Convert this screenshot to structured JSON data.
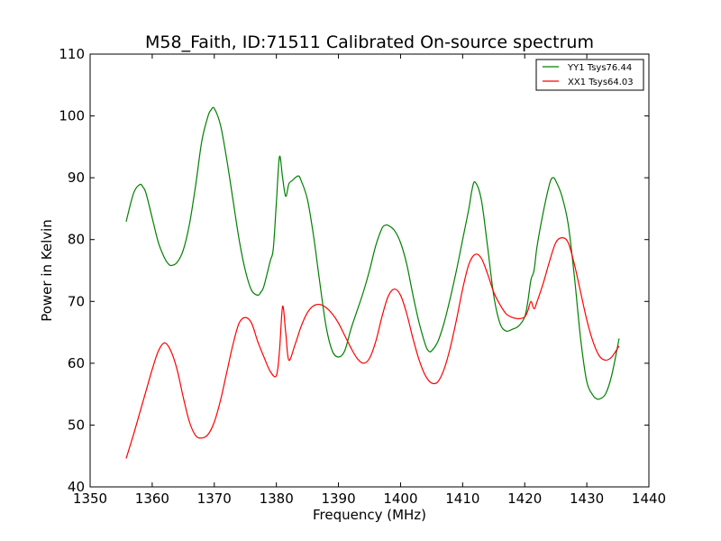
{
  "chart_data": {
    "type": "line",
    "title": "M58_Faith, ID:71511 Calibrated On-source spectrum",
    "xlabel": "Frequency (MHz)",
    "ylabel": "Power in Kelvin",
    "xlim": [
      1350,
      1440
    ],
    "ylim": [
      40,
      110
    ],
    "xticks": [
      1350,
      1360,
      1370,
      1380,
      1390,
      1400,
      1410,
      1420,
      1430,
      1440
    ],
    "yticks": [
      40,
      50,
      60,
      70,
      80,
      90,
      100,
      110
    ],
    "grid": false,
    "legend_position": "top-right",
    "series": [
      {
        "name": "YY1 Tsys76.44",
        "color": "#008000",
        "x": [
          1355.8,
          1357.0,
          1358.0,
          1358.5,
          1359.0,
          1360.0,
          1361.0,
          1362.0,
          1362.5,
          1363.0,
          1364.0,
          1365.0,
          1366.0,
          1367.0,
          1368.0,
          1369.0,
          1369.5,
          1370.0,
          1371.0,
          1372.0,
          1373.0,
          1374.0,
          1375.0,
          1376.0,
          1377.0,
          1377.5,
          1378.0,
          1379.0,
          1379.5,
          1380.0,
          1380.5,
          1381.0,
          1381.5,
          1382.0,
          1382.5,
          1383.5,
          1384.0,
          1385.0,
          1386.0,
          1387.0,
          1388.0,
          1389.0,
          1390.0,
          1391.0,
          1392.0,
          1393.0,
          1394.0,
          1395.0,
          1396.0,
          1397.0,
          1397.5,
          1398.0,
          1399.0,
          1400.0,
          1401.0,
          1402.0,
          1403.0,
          1404.0,
          1404.5,
          1405.0,
          1406.0,
          1407.0,
          1408.0,
          1409.0,
          1410.0,
          1411.0,
          1411.5,
          1412.0,
          1413.0,
          1414.0,
          1415.0,
          1416.0,
          1417.0,
          1418.0,
          1419.0,
          1420.0,
          1420.5,
          1421.0,
          1421.5,
          1422.0,
          1423.0,
          1424.0,
          1424.5,
          1425.0,
          1426.0,
          1427.0,
          1428.0,
          1429.0,
          1430.0,
          1431.0,
          1431.5,
          1432.0,
          1433.0,
          1434.0,
          1435.2
        ],
        "values": [
          82.9,
          87.5,
          88.9,
          88.5,
          87.5,
          83.5,
          79.5,
          77.0,
          76.2,
          75.8,
          76.3,
          78.3,
          82.5,
          88.8,
          96.0,
          100.0,
          101.0,
          101.2,
          98.5,
          93.0,
          86.5,
          80.0,
          75.0,
          71.8,
          71.0,
          71.5,
          72.5,
          76.5,
          78.5,
          86.0,
          93.4,
          90.0,
          87.0,
          89.0,
          89.5,
          90.3,
          89.5,
          86.5,
          80.5,
          73.0,
          66.0,
          62.0,
          61.0,
          62.0,
          65.5,
          68.5,
          71.5,
          75.0,
          79.0,
          81.8,
          82.3,
          82.3,
          81.5,
          79.5,
          76.0,
          71.0,
          66.5,
          63.0,
          62.0,
          62.0,
          63.5,
          66.5,
          70.5,
          75.0,
          80.0,
          85.0,
          88.0,
          89.3,
          86.5,
          79.0,
          71.0,
          66.5,
          65.2,
          65.5,
          66.0,
          67.5,
          70.0,
          73.5,
          75.0,
          79.0,
          84.5,
          89.0,
          90.0,
          89.5,
          87.0,
          82.5,
          74.0,
          64.0,
          57.0,
          54.8,
          54.3,
          54.2,
          55.0,
          58.0,
          64.0
        ]
      },
      {
        "name": "XX1 Tsys64.03",
        "color": "#ff0000",
        "x": [
          1355.8,
          1357.0,
          1358.0,
          1359.0,
          1360.0,
          1361.0,
          1362.0,
          1363.0,
          1364.0,
          1365.0,
          1366.0,
          1367.0,
          1368.0,
          1369.0,
          1370.0,
          1371.0,
          1372.0,
          1373.0,
          1374.0,
          1375.0,
          1376.0,
          1377.0,
          1378.0,
          1379.0,
          1380.0,
          1380.5,
          1381.0,
          1381.5,
          1382.0,
          1383.0,
          1384.0,
          1385.0,
          1386.0,
          1387.0,
          1388.0,
          1389.0,
          1390.0,
          1391.0,
          1392.0,
          1393.0,
          1394.0,
          1395.0,
          1396.0,
          1397.0,
          1398.0,
          1399.0,
          1400.0,
          1401.0,
          1402.0,
          1403.0,
          1404.0,
          1405.0,
          1406.0,
          1407.0,
          1408.0,
          1409.0,
          1410.0,
          1411.0,
          1412.0,
          1413.0,
          1414.0,
          1415.0,
          1416.0,
          1417.0,
          1418.0,
          1419.0,
          1420.0,
          1420.5,
          1421.0,
          1421.5,
          1422.0,
          1423.0,
          1424.0,
          1425.0,
          1426.0,
          1427.0,
          1428.0,
          1429.0,
          1430.0,
          1431.0,
          1432.0,
          1433.0,
          1434.0,
          1435.2
        ],
        "values": [
          44.6,
          48.5,
          52.0,
          55.5,
          59.0,
          62.0,
          63.3,
          62.0,
          59.0,
          54.5,
          50.5,
          48.3,
          47.9,
          48.5,
          50.5,
          54.0,
          58.5,
          63.0,
          66.5,
          67.4,
          66.5,
          63.5,
          61.0,
          58.7,
          58.0,
          62.0,
          69.2,
          65.0,
          60.5,
          63.0,
          66.0,
          68.2,
          69.3,
          69.5,
          69.0,
          68.0,
          66.5,
          64.5,
          62.5,
          60.8,
          60.0,
          60.8,
          63.5,
          67.5,
          70.8,
          72.0,
          71.0,
          68.0,
          64.0,
          60.5,
          58.0,
          56.8,
          57.0,
          59.0,
          62.5,
          67.0,
          72.0,
          76.0,
          77.6,
          77.0,
          74.5,
          71.5,
          69.5,
          68.0,
          67.4,
          67.2,
          67.5,
          68.5,
          70.0,
          68.8,
          70.0,
          73.0,
          76.5,
          79.5,
          80.3,
          79.5,
          76.0,
          71.5,
          67.0,
          63.5,
          61.2,
          60.5,
          61.0,
          62.8
        ]
      }
    ]
  }
}
